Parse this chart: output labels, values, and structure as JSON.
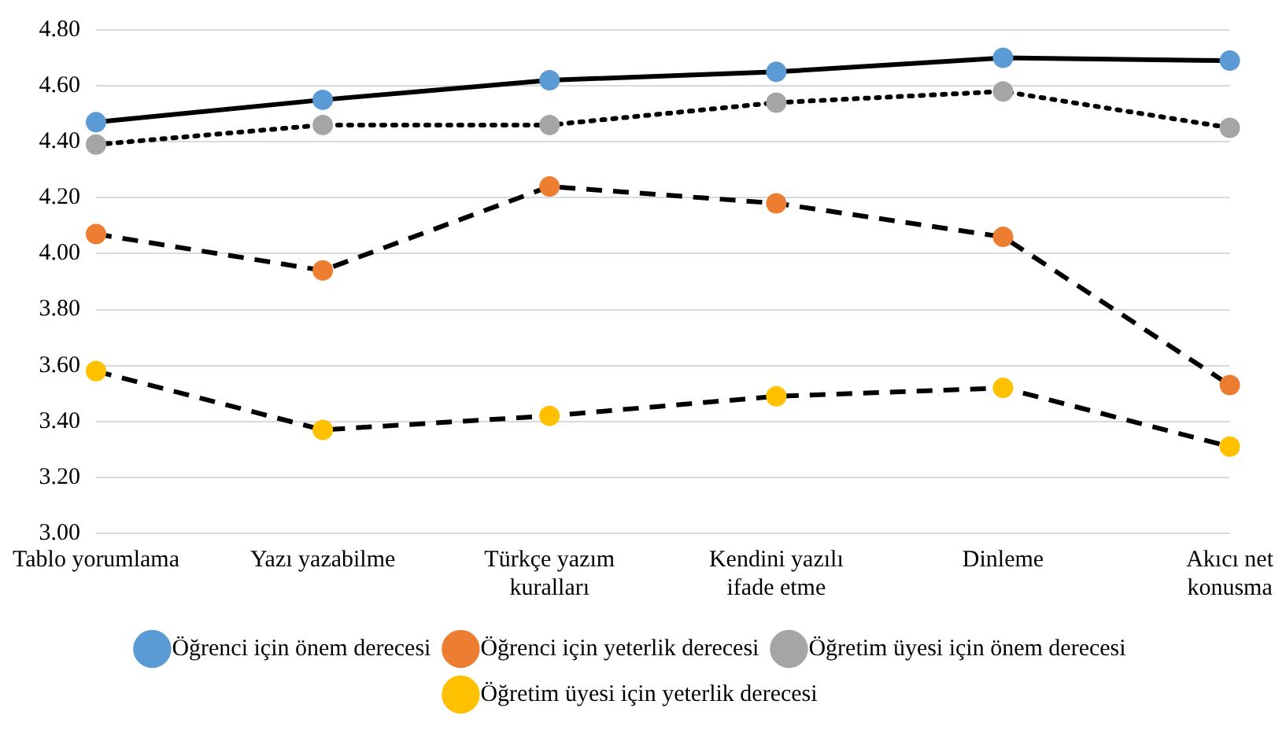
{
  "chart_data": {
    "type": "line",
    "categories": [
      "Tablo yorumlama",
      "Yazı yazabilme",
      "Türkçe yazım kuralları",
      "Kendini yazılı ifade etme",
      "Dinleme",
      "Akıcı net konusma"
    ],
    "series": [
      {
        "name": "Öğrenci için önem derecesi",
        "color": "#5b9bd5",
        "line_style": "solid",
        "values": [
          4.47,
          4.55,
          4.62,
          4.65,
          4.7,
          4.69
        ]
      },
      {
        "name": "Öğrenci için yeterlik derecesi",
        "color": "#ed7d31",
        "line_style": "dashed",
        "values": [
          4.07,
          3.94,
          4.24,
          4.18,
          4.06,
          3.53
        ]
      },
      {
        "name": "Öğretim üyesi için önem derecesi",
        "color": "#a5a5a5",
        "line_style": "dotted",
        "values": [
          4.39,
          4.46,
          4.46,
          4.54,
          4.58,
          4.45
        ]
      },
      {
        "name": "Öğretim üyesi için yeterlik derecesi",
        "color": "#ffc000",
        "line_style": "dashed",
        "values": [
          3.58,
          3.37,
          3.42,
          3.49,
          3.52,
          3.31
        ]
      }
    ],
    "ylim": [
      3,
      4.8
    ],
    "yticks": [
      {
        "value": 3,
        "label": "3.00"
      },
      {
        "value": 3.2,
        "label": "3.20"
      },
      {
        "value": 3.4,
        "label": "3.40"
      },
      {
        "value": 3.6,
        "label": "3.60"
      },
      {
        "value": 3.8,
        "label": "3.80"
      },
      {
        "value": 4,
        "label": "4.00"
      },
      {
        "value": 4.2,
        "label": "4.20"
      },
      {
        "value": 4.4,
        "label": "4.40"
      },
      {
        "value": 4.6,
        "label": "4.60"
      },
      {
        "value": 4.8,
        "label": "4.80"
      }
    ],
    "grid": "y",
    "legend": "bottom",
    "marker": "circle"
  }
}
